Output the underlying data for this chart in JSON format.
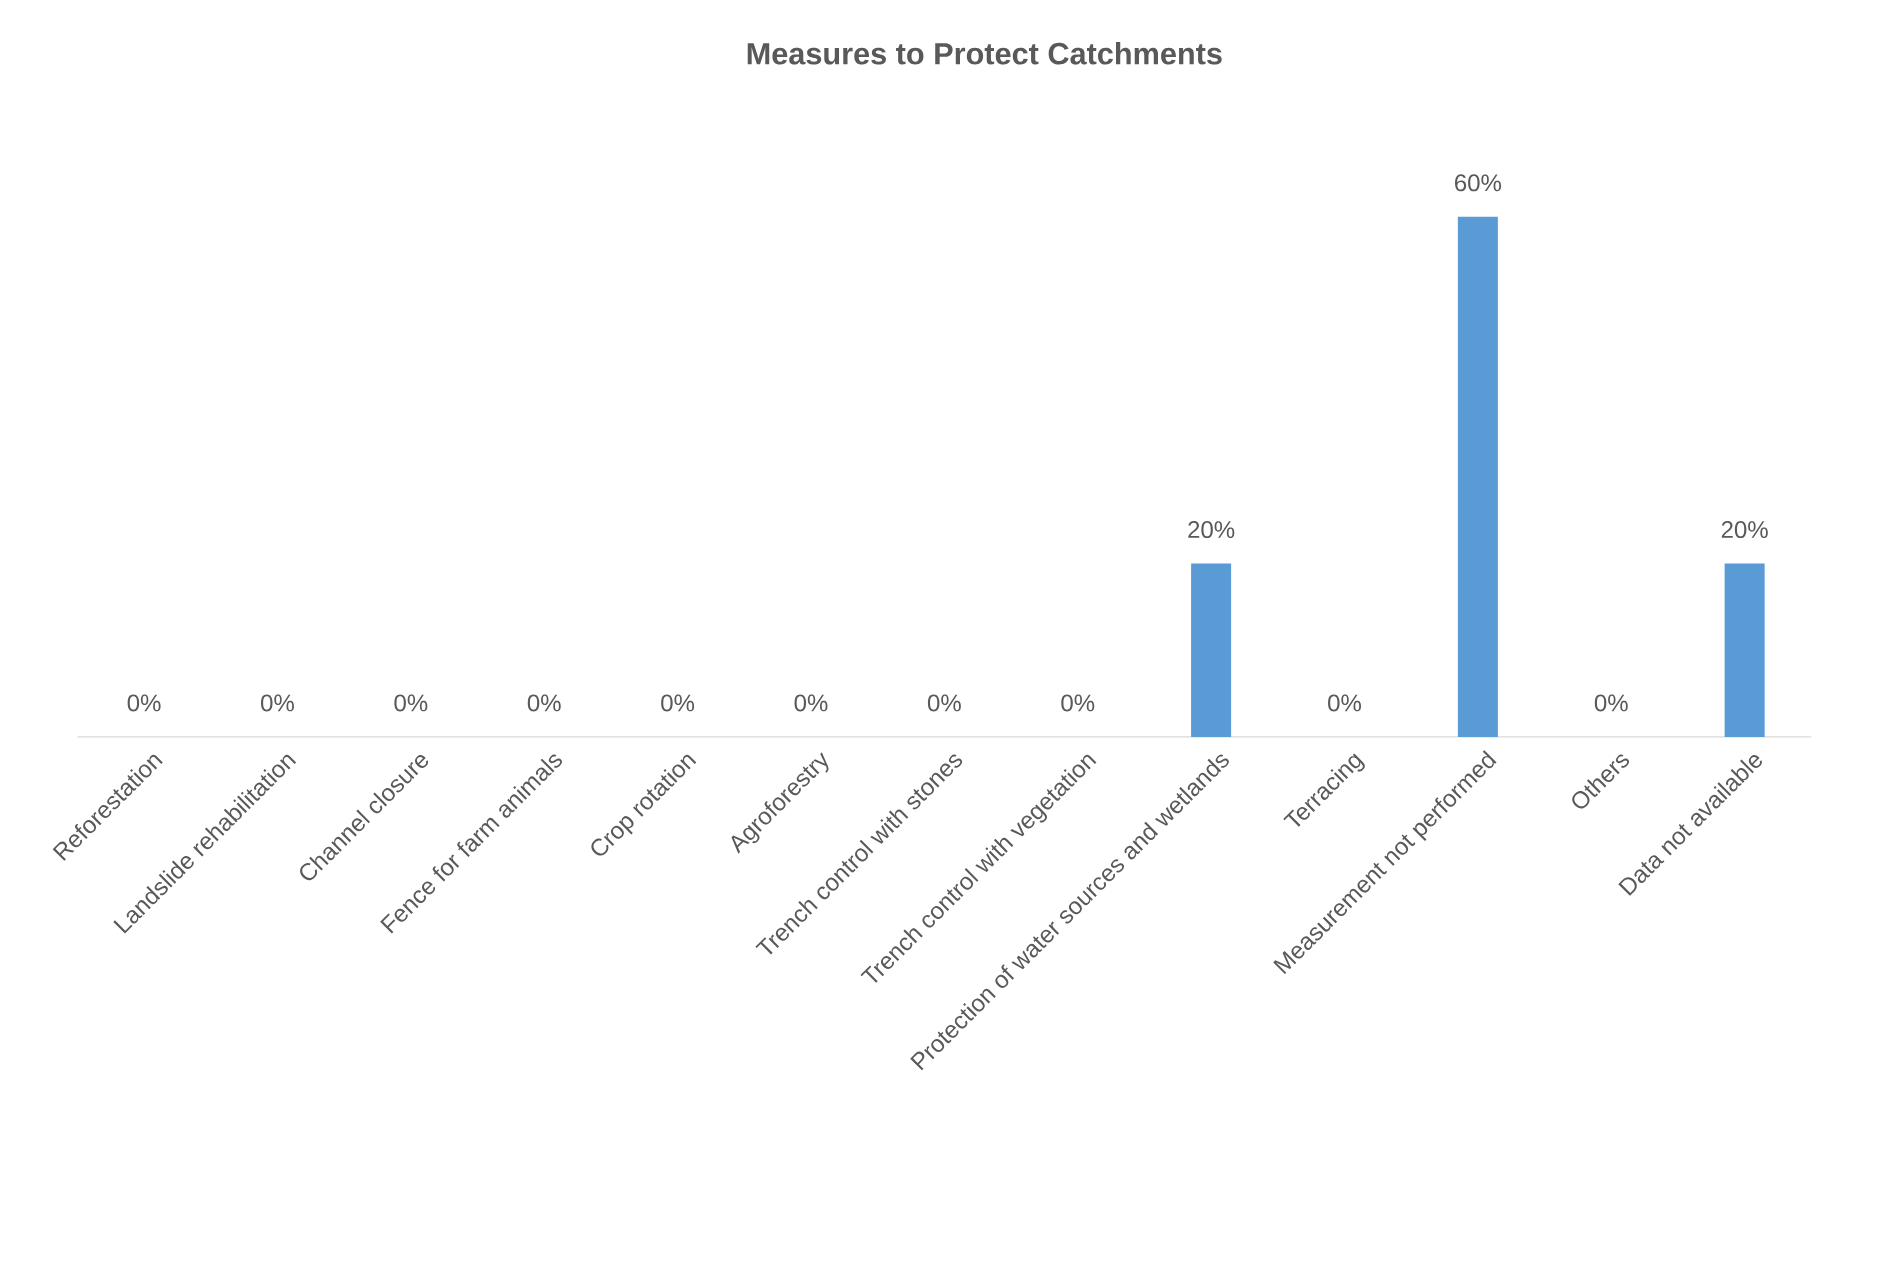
{
  "chart_data": {
    "type": "bar",
    "title": "Measures to Protect Catchments",
    "categories": [
      "Reforestation",
      "Landslide rehabilitation",
      "Channel closure",
      "Fence for farm animals",
      "Crop rotation",
      "Agroforestry",
      "Trench control with stones",
      "Trench control with vegetation",
      "Protection of water sources and wetlands",
      "Terracing",
      "Measurement not performed",
      "Others",
      "Data not available"
    ],
    "values": [
      0,
      0,
      0,
      0,
      0,
      0,
      0,
      0,
      20,
      0,
      60,
      0,
      20
    ],
    "value_labels": [
      "0%",
      "0%",
      "0%",
      "0%",
      "0%",
      "0%",
      "0%",
      "0%",
      "20%",
      "0%",
      "60%",
      "0%",
      "20%"
    ],
    "color": "#5b9bd5"
  }
}
